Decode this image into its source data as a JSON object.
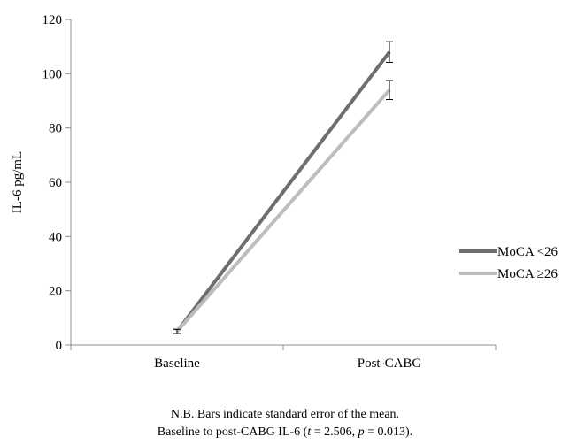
{
  "chart_data": {
    "type": "line",
    "title": "",
    "xlabel": "",
    "ylabel": "IL-6 pg/mL",
    "categories": [
      "Baseline",
      "Post-CABG"
    ],
    "ylim": [
      0,
      120
    ],
    "yticks": [
      0,
      20,
      40,
      60,
      80,
      100,
      120
    ],
    "grid": false,
    "legend_position": "right",
    "series": [
      {
        "name": "MoCA <26",
        "values": [
          5,
          108
        ],
        "error": [
          0.8,
          3.8
        ],
        "color": "#6e6e6e"
      },
      {
        "name": "MoCA ≥26",
        "values": [
          5,
          94
        ],
        "error": [
          0.8,
          3.5
        ],
        "color": "#bdbdbd"
      }
    ]
  },
  "footnote": {
    "line1": "N.B. Bars indicate standard error of the mean.",
    "line2_prefix": "Baseline to post-CABG IL-6 (",
    "t_symbol": "t",
    "t_value": " = 2.506, ",
    "p_symbol": "p",
    "p_value": " = 0.013)."
  }
}
